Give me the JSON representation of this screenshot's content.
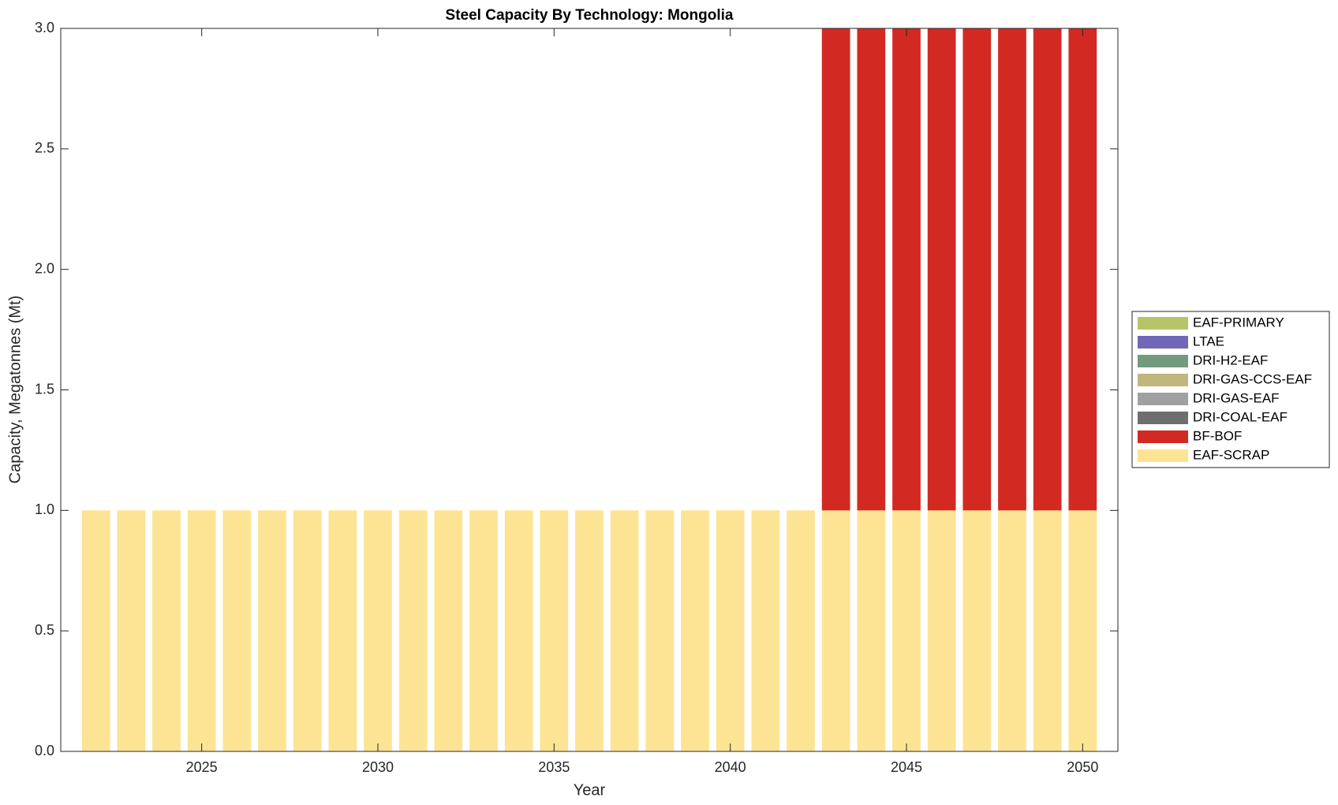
{
  "chart_data": {
    "type": "stacked-bar",
    "title": "Steel Capacity By Technology: Mongolia",
    "xlabel": "Year",
    "ylabel": "Capacity, Megatonnes (Mt)",
    "x": [
      2022,
      2023,
      2024,
      2025,
      2026,
      2027,
      2028,
      2029,
      2030,
      2031,
      2032,
      2033,
      2034,
      2035,
      2036,
      2037,
      2038,
      2039,
      2040,
      2041,
      2042,
      2043,
      2044,
      2045,
      2046,
      2047,
      2048,
      2049,
      2050
    ],
    "series": [
      {
        "name": "EAF-SCRAP",
        "color": "#fde494",
        "values": [
          1,
          1,
          1,
          1,
          1,
          1,
          1,
          1,
          1,
          1,
          1,
          1,
          1,
          1,
          1,
          1,
          1,
          1,
          1,
          1,
          1,
          1,
          1,
          1,
          1,
          1,
          1,
          1,
          1
        ]
      },
      {
        "name": "BF-BOF",
        "color": "#d22a23",
        "values": [
          0,
          0,
          0,
          0,
          0,
          0,
          0,
          0,
          0,
          0,
          0,
          0,
          0,
          0,
          0,
          0,
          0,
          0,
          0,
          0,
          0,
          2,
          2,
          2,
          2,
          2,
          2,
          2,
          2
        ]
      },
      {
        "name": "DRI-COAL-EAF",
        "color": "#6e6e6e",
        "values": [
          0,
          0,
          0,
          0,
          0,
          0,
          0,
          0,
          0,
          0,
          0,
          0,
          0,
          0,
          0,
          0,
          0,
          0,
          0,
          0,
          0,
          0,
          0,
          0,
          0,
          0,
          0,
          0,
          0
        ]
      },
      {
        "name": "DRI-GAS-EAF",
        "color": "#a0a0a0",
        "values": [
          0,
          0,
          0,
          0,
          0,
          0,
          0,
          0,
          0,
          0,
          0,
          0,
          0,
          0,
          0,
          0,
          0,
          0,
          0,
          0,
          0,
          0,
          0,
          0,
          0,
          0,
          0,
          0,
          0
        ]
      },
      {
        "name": "DRI-GAS-CCS-EAF",
        "color": "#c0b67e",
        "values": [
          0,
          0,
          0,
          0,
          0,
          0,
          0,
          0,
          0,
          0,
          0,
          0,
          0,
          0,
          0,
          0,
          0,
          0,
          0,
          0,
          0,
          0,
          0,
          0,
          0,
          0,
          0,
          0,
          0
        ]
      },
      {
        "name": "DRI-H2-EAF",
        "color": "#739a7d",
        "values": [
          0,
          0,
          0,
          0,
          0,
          0,
          0,
          0,
          0,
          0,
          0,
          0,
          0,
          0,
          0,
          0,
          0,
          0,
          0,
          0,
          0,
          0,
          0,
          0,
          0,
          0,
          0,
          0,
          0
        ]
      },
      {
        "name": "LTAE",
        "color": "#7067b8",
        "values": [
          0,
          0,
          0,
          0,
          0,
          0,
          0,
          0,
          0,
          0,
          0,
          0,
          0,
          0,
          0,
          0,
          0,
          0,
          0,
          0,
          0,
          0,
          0,
          0,
          0,
          0,
          0,
          0,
          0
        ]
      },
      {
        "name": "EAF-PRIMARY",
        "color": "#b9c46a",
        "values": [
          0,
          0,
          0,
          0,
          0,
          0,
          0,
          0,
          0,
          0,
          0,
          0,
          0,
          0,
          0,
          0,
          0,
          0,
          0,
          0,
          0,
          0,
          0,
          0,
          0,
          0,
          0,
          0,
          0
        ]
      }
    ],
    "xlim": [
      2021,
      2051
    ],
    "xticks": [
      2025,
      2030,
      2035,
      2040,
      2045,
      2050
    ],
    "ylim": [
      0,
      3
    ],
    "yticks": [
      {
        "value": 0,
        "label": "0.0"
      },
      0.5,
      {
        "value": 1,
        "label": "1.0"
      },
      1.5,
      {
        "value": 2,
        "label": "2.0"
      },
      2.5,
      {
        "value": 3,
        "label": "3.0"
      }
    ],
    "legend": "outside-right"
  }
}
